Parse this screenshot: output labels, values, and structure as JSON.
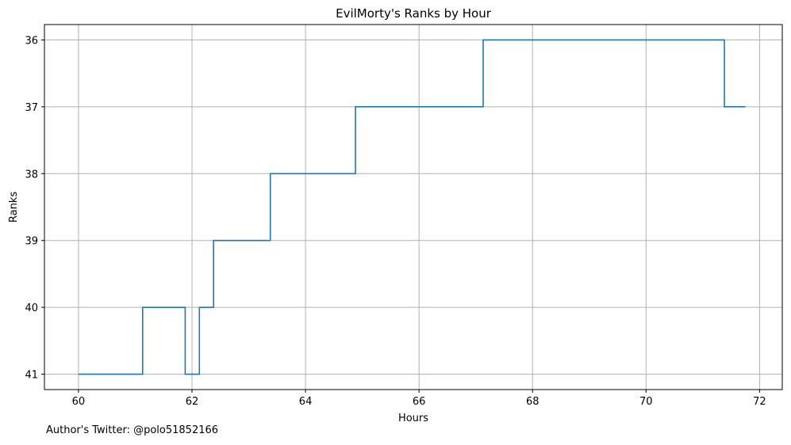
{
  "chart_data": {
    "type": "line",
    "drawstyle": "steps-post",
    "title": "EvilMorty's Ranks by Hour",
    "xlabel": "Hours",
    "ylabel": "Ranks",
    "xlim": [
      59.4,
      72.4
    ],
    "ylim": [
      41.23,
      35.77
    ],
    "y_inverted": true,
    "grid": true,
    "x_ticks": [
      60,
      62,
      64,
      66,
      68,
      70,
      72
    ],
    "y_ticks": [
      36,
      37,
      38,
      39,
      40,
      41
    ],
    "series": [
      {
        "color": "#1f77b4",
        "x": [
          60.0,
          61.13,
          61.88,
          62.13,
          62.38,
          63.38,
          64.88,
          67.13,
          71.38,
          71.75
        ],
        "y": [
          41,
          40,
          41,
          40,
          39,
          38,
          37,
          36,
          37,
          37
        ]
      }
    ]
  },
  "annotation": "Author's Twitter: @polo51852166"
}
